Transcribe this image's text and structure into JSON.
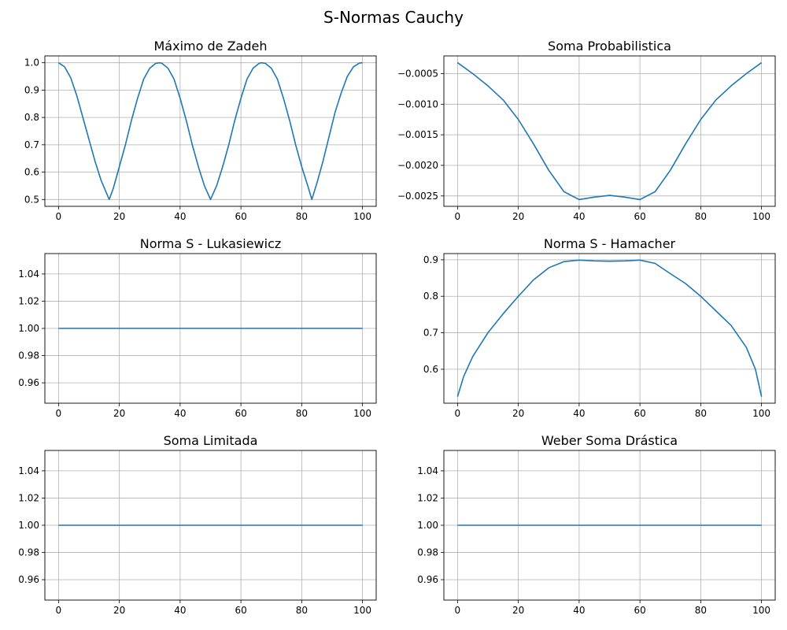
{
  "figure": {
    "title": "S-Normas Cauchy",
    "line_color": "#1f77b4",
    "grid": true
  },
  "chart_data": [
    {
      "type": "line",
      "title": "Máximo de Zadeh",
      "xlim": [
        -4.5,
        104.5
      ],
      "ylim": [
        0.475,
        1.025
      ],
      "xticks": [
        0,
        20,
        40,
        60,
        80,
        100
      ],
      "xtick_labels": [
        "0",
        "20",
        "40",
        "60",
        "80",
        "100"
      ],
      "yticks": [
        0.5,
        0.6,
        0.7,
        0.8,
        0.9,
        1.0
      ],
      "ytick_labels": [
        "0.5",
        "0.6",
        "0.7",
        "0.8",
        "0.9",
        "1.0"
      ],
      "series": [
        {
          "x": [
            0,
            2,
            4,
            6,
            8,
            10,
            12,
            14,
            16.67,
            18,
            20,
            22,
            24,
            26,
            28,
            30,
            32,
            33.33,
            34,
            36,
            38,
            40,
            42,
            44,
            46,
            48,
            50,
            52,
            54,
            56,
            58,
            60,
            62,
            64,
            66,
            66.67,
            68,
            70,
            72,
            74,
            76,
            78,
            80,
            82,
            83.33,
            85,
            87,
            89,
            91,
            93,
            95,
            97,
            99,
            100
          ],
          "y": [
            1.0,
            0.985,
            0.945,
            0.88,
            0.8,
            0.72,
            0.64,
            0.57,
            0.5,
            0.54,
            0.62,
            0.7,
            0.79,
            0.87,
            0.94,
            0.98,
            0.998,
            1.0,
            0.998,
            0.98,
            0.94,
            0.87,
            0.79,
            0.7,
            0.62,
            0.55,
            0.5,
            0.55,
            0.62,
            0.7,
            0.79,
            0.87,
            0.94,
            0.98,
            0.998,
            1.0,
            0.998,
            0.98,
            0.94,
            0.87,
            0.79,
            0.7,
            0.62,
            0.55,
            0.5,
            0.56,
            0.64,
            0.73,
            0.82,
            0.89,
            0.95,
            0.985,
            0.999,
            1.0
          ]
        }
      ]
    },
    {
      "type": "line",
      "title": "Soma Probabilistica",
      "xlim": [
        -4.5,
        104.5
      ],
      "ylim": [
        -0.00267,
        -0.00021
      ],
      "xticks": [
        0,
        20,
        40,
        60,
        80,
        100
      ],
      "xtick_labels": [
        "0",
        "20",
        "40",
        "60",
        "80",
        "100"
      ],
      "yticks": [
        -0.0025,
        -0.002,
        -0.0015,
        -0.001,
        -0.0005
      ],
      "ytick_labels": [
        "−0.0025",
        "−0.0020",
        "−0.0015",
        "−0.0010",
        "−0.0005"
      ],
      "series": [
        {
          "x": [
            0,
            5,
            10,
            15,
            20,
            25,
            30,
            35,
            40,
            45,
            50,
            55,
            60,
            65,
            70,
            75,
            80,
            85,
            90,
            95,
            100
          ],
          "y": [
            -0.00032,
            -0.0005,
            -0.0007,
            -0.00093,
            -0.00125,
            -0.00165,
            -0.00208,
            -0.00243,
            -0.00256,
            -0.00252,
            -0.00249,
            -0.00252,
            -0.00256,
            -0.00243,
            -0.00208,
            -0.00165,
            -0.00125,
            -0.00093,
            -0.0007,
            -0.0005,
            -0.00032
          ]
        }
      ]
    },
    {
      "type": "line",
      "title": "Norma S - Lukasiewicz",
      "xlim": [
        -4.5,
        104.5
      ],
      "ylim": [
        0.945,
        1.055
      ],
      "xticks": [
        0,
        20,
        40,
        60,
        80,
        100
      ],
      "xtick_labels": [
        "0",
        "20",
        "40",
        "60",
        "80",
        "100"
      ],
      "yticks": [
        0.96,
        0.98,
        1.0,
        1.02,
        1.04
      ],
      "ytick_labels": [
        "0.96",
        "0.98",
        "1.00",
        "1.02",
        "1.04"
      ],
      "series": [
        {
          "x": [
            0,
            100
          ],
          "y": [
            1.0,
            1.0
          ]
        }
      ]
    },
    {
      "type": "line",
      "title": "Norma S - Hamacher",
      "xlim": [
        -4.5,
        104.5
      ],
      "ylim": [
        0.507,
        0.917
      ],
      "xticks": [
        0,
        20,
        40,
        60,
        80,
        100
      ],
      "xtick_labels": [
        "0",
        "20",
        "40",
        "60",
        "80",
        "100"
      ],
      "yticks": [
        0.6,
        0.7,
        0.8,
        0.9
      ],
      "ytick_labels": [
        "0.6",
        "0.7",
        "0.8",
        "0.9"
      ],
      "series": [
        {
          "x": [
            0,
            2,
            5,
            10,
            15,
            20,
            25,
            30,
            35,
            40,
            45,
            50,
            55,
            60,
            65,
            70,
            75,
            80,
            85,
            90,
            95,
            98,
            100
          ],
          "y": [
            0.525,
            0.58,
            0.635,
            0.7,
            0.752,
            0.8,
            0.845,
            0.878,
            0.895,
            0.899,
            0.897,
            0.896,
            0.897,
            0.899,
            0.89,
            0.862,
            0.835,
            0.8,
            0.76,
            0.72,
            0.66,
            0.6,
            0.525
          ]
        }
      ]
    },
    {
      "type": "line",
      "title": "Soma Limitada",
      "xlim": [
        -4.5,
        104.5
      ],
      "ylim": [
        0.945,
        1.055
      ],
      "xticks": [
        0,
        20,
        40,
        60,
        80,
        100
      ],
      "xtick_labels": [
        "0",
        "20",
        "40",
        "60",
        "80",
        "100"
      ],
      "yticks": [
        0.96,
        0.98,
        1.0,
        1.02,
        1.04
      ],
      "ytick_labels": [
        "0.96",
        "0.98",
        "1.00",
        "1.02",
        "1.04"
      ],
      "series": [
        {
          "x": [
            0,
            100
          ],
          "y": [
            1.0,
            1.0
          ]
        }
      ]
    },
    {
      "type": "line",
      "title": "Weber Soma Drástica",
      "xlim": [
        -4.5,
        104.5
      ],
      "ylim": [
        0.945,
        1.055
      ],
      "xticks": [
        0,
        20,
        40,
        60,
        80,
        100
      ],
      "xtick_labels": [
        "0",
        "20",
        "40",
        "60",
        "80",
        "100"
      ],
      "yticks": [
        0.96,
        0.98,
        1.0,
        1.02,
        1.04
      ],
      "ytick_labels": [
        "0.96",
        "0.98",
        "1.00",
        "1.02",
        "1.04"
      ],
      "series": [
        {
          "x": [
            0,
            100
          ],
          "y": [
            1.0,
            1.0
          ]
        }
      ]
    }
  ]
}
